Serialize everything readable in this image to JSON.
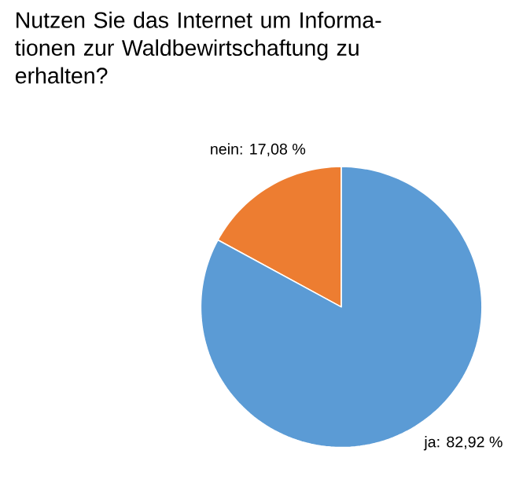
{
  "chart_data": {
    "type": "pie",
    "title": "Nutzen Sie das Internet um Informa-tionen zur Waldbewirtschaftung zu erhalten?",
    "categories": [
      "ja",
      "nein"
    ],
    "values": [
      82.92,
      17.08
    ],
    "colors": [
      "#5b9bd5",
      "#ed7d31"
    ],
    "value_labels": [
      ": 82,92 %",
      ": 17,08 %"
    ]
  }
}
